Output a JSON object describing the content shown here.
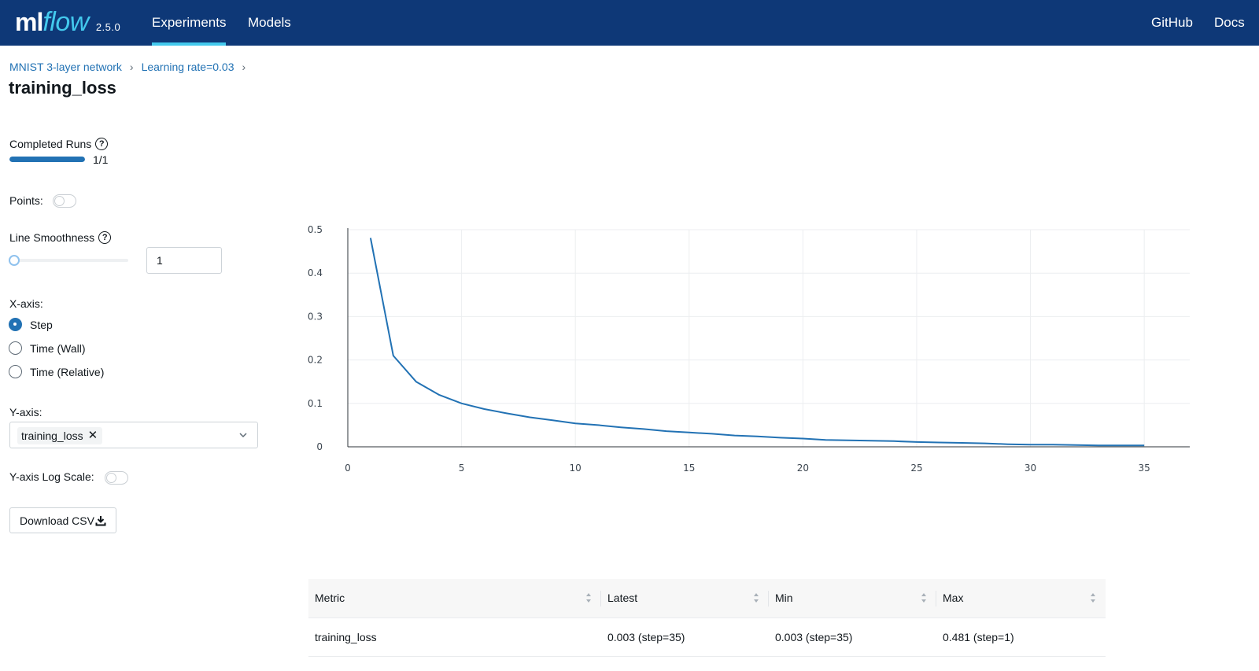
{
  "nav": {
    "logo_ml": "ml",
    "logo_flow": "flow",
    "version": "2.5.0",
    "links": [
      "Experiments",
      "Models"
    ],
    "right_links": [
      "GitHub",
      "Docs"
    ]
  },
  "breadcrumb": [
    "MNIST 3-layer network",
    "Learning rate=0.03"
  ],
  "title": "training_loss",
  "controls": {
    "completed_runs_label": "Completed Runs",
    "completed_runs_value": "1/1",
    "completed_runs_fraction": 1.0,
    "points_label": "Points:",
    "points_on": false,
    "line_smoothness_label": "Line Smoothness",
    "line_smoothness_value": "1",
    "x_axis_label": "X-axis:",
    "x_axis_options": [
      "Step",
      "Time (Wall)",
      "Time (Relative)"
    ],
    "x_axis_selected": "Step",
    "y_axis_label": "Y-axis:",
    "y_axis_selected": "training_loss",
    "y_log_label": "Y-axis Log Scale:",
    "y_log_on": false,
    "download_label": "Download CSV"
  },
  "colors": {
    "nav_bg": "#0e3877",
    "accent": "#2272b4",
    "logo_flow": "#43c9ed"
  },
  "chart_data": {
    "type": "line",
    "title": "",
    "xlabel": "",
    "ylabel": "",
    "xlim": [
      0,
      37
    ],
    "ylim": [
      0,
      0.5
    ],
    "xticks": [
      0,
      5,
      10,
      15,
      20,
      25,
      30,
      35
    ],
    "yticks": [
      0,
      0.1,
      0.2,
      0.3,
      0.4,
      0.5
    ],
    "ytick_labels": [
      "0",
      "0.1",
      "0.2",
      "0.3",
      "0.4",
      "0.5"
    ],
    "grid": true,
    "series": [
      {
        "name": "training_loss",
        "color": "#2272b4",
        "x": [
          1,
          2,
          3,
          4,
          5,
          6,
          7,
          8,
          9,
          10,
          11,
          12,
          13,
          14,
          15,
          16,
          17,
          18,
          19,
          20,
          21,
          22,
          23,
          24,
          25,
          26,
          27,
          28,
          29,
          30,
          31,
          32,
          33,
          34,
          35
        ],
        "y": [
          0.481,
          0.21,
          0.15,
          0.12,
          0.1,
          0.087,
          0.077,
          0.068,
          0.061,
          0.054,
          0.05,
          0.045,
          0.041,
          0.036,
          0.033,
          0.03,
          0.026,
          0.024,
          0.021,
          0.019,
          0.016,
          0.015,
          0.014,
          0.013,
          0.011,
          0.01,
          0.009,
          0.008,
          0.006,
          0.005,
          0.005,
          0.004,
          0.003,
          0.003,
          0.003
        ]
      }
    ]
  },
  "table": {
    "headers": [
      "Metric",
      "Latest",
      "Min",
      "Max"
    ],
    "rows": [
      [
        "training_loss",
        "0.003 (step=35)",
        "0.003 (step=35)",
        "0.481 (step=1)"
      ]
    ]
  }
}
